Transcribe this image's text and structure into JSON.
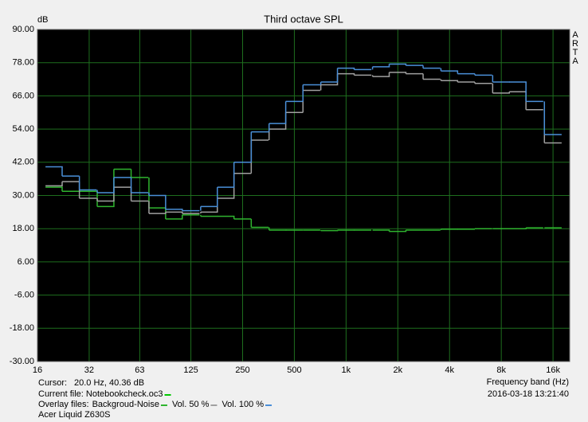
{
  "chart_data": {
    "type": "step",
    "title": "Third octave SPL",
    "y_label": "dB",
    "x_label": "Frequency band (Hz)",
    "watermark": [
      "A",
      "R",
      "T",
      "A"
    ],
    "cursor_label": "Cursor:",
    "cursor_value": "20.0 Hz, 40.36 dB",
    "current_file": "Current file: Notebookcheck.oc3",
    "current_file_color": "#00c800",
    "overlay_label": "Overlay files:",
    "timestamp": "2016-03-18  13:21:40",
    "device": "Acer Liquid Z630S",
    "x_log": true,
    "grid": true,
    "xlim": [
      16,
      20000
    ],
    "ylim": [
      -30,
      90
    ],
    "xticks": [
      16,
      32,
      63,
      125,
      250,
      500,
      {
        "value": 1000,
        "label": "1k"
      },
      {
        "value": 2000,
        "label": "2k"
      },
      {
        "value": 4000,
        "label": "4k"
      },
      {
        "value": 8000,
        "label": "8k"
      },
      {
        "value": 16000,
        "label": "16k"
      }
    ],
    "yticks": [
      {
        "value": 90,
        "label": "90.00"
      },
      {
        "value": 78,
        "label": "78.00"
      },
      {
        "value": 66,
        "label": "66.00"
      },
      {
        "value": 54,
        "label": "54.00"
      },
      {
        "value": 42,
        "label": "42.00"
      },
      {
        "value": 30,
        "label": "30.00"
      },
      {
        "value": 18,
        "label": "18.00"
      },
      {
        "value": 6,
        "label": "6.00"
      },
      {
        "value": -6,
        "label": "-6.00"
      },
      {
        "value": -18,
        "label": "-18.00"
      },
      {
        "value": -30,
        "label": "-30.00"
      }
    ],
    "x": [
      20,
      25,
      31.5,
      40,
      50,
      63,
      80,
      100,
      125,
      160,
      200,
      250,
      315,
      400,
      500,
      630,
      800,
      1000,
      1250,
      1600,
      2000,
      2500,
      3150,
      4000,
      5000,
      6300,
      8000,
      10000,
      12500,
      16000
    ],
    "series": [
      {
        "name": "Backgroud-Noise",
        "color": "#2fb52f",
        "values": [
          33,
          31.5,
          31.5,
          26,
          39.5,
          36.5,
          25.5,
          21.5,
          23,
          22.5,
          22.5,
          21.5,
          18.5,
          17.5,
          17.5,
          17.5,
          17.3,
          17.5,
          17.5,
          17.5,
          17,
          17.5,
          17.5,
          17.8,
          17.8,
          18,
          18,
          18,
          18.3,
          18.3
        ]
      },
      {
        "name": "Vol. 50 %",
        "color": "#a0a0a0",
        "values": [
          33.5,
          35,
          29,
          28,
          33,
          28,
          23.5,
          24,
          23.5,
          24,
          29,
          38,
          50,
          54,
          60,
          68,
          70,
          74,
          73.5,
          73,
          74.5,
          74,
          72,
          71.5,
          71,
          70.5,
          67,
          67.5,
          61,
          49
        ]
      },
      {
        "name": "Vol. 100 %",
        "color": "#4a8fd8",
        "values": [
          40.36,
          37,
          32,
          31,
          36.5,
          31,
          30,
          25,
          24.5,
          26,
          33,
          42,
          53,
          56,
          64,
          70,
          71,
          76,
          75.5,
          76.5,
          77.5,
          77,
          76,
          75,
          74,
          73.5,
          71,
          71,
          64,
          52
        ]
      }
    ]
  }
}
